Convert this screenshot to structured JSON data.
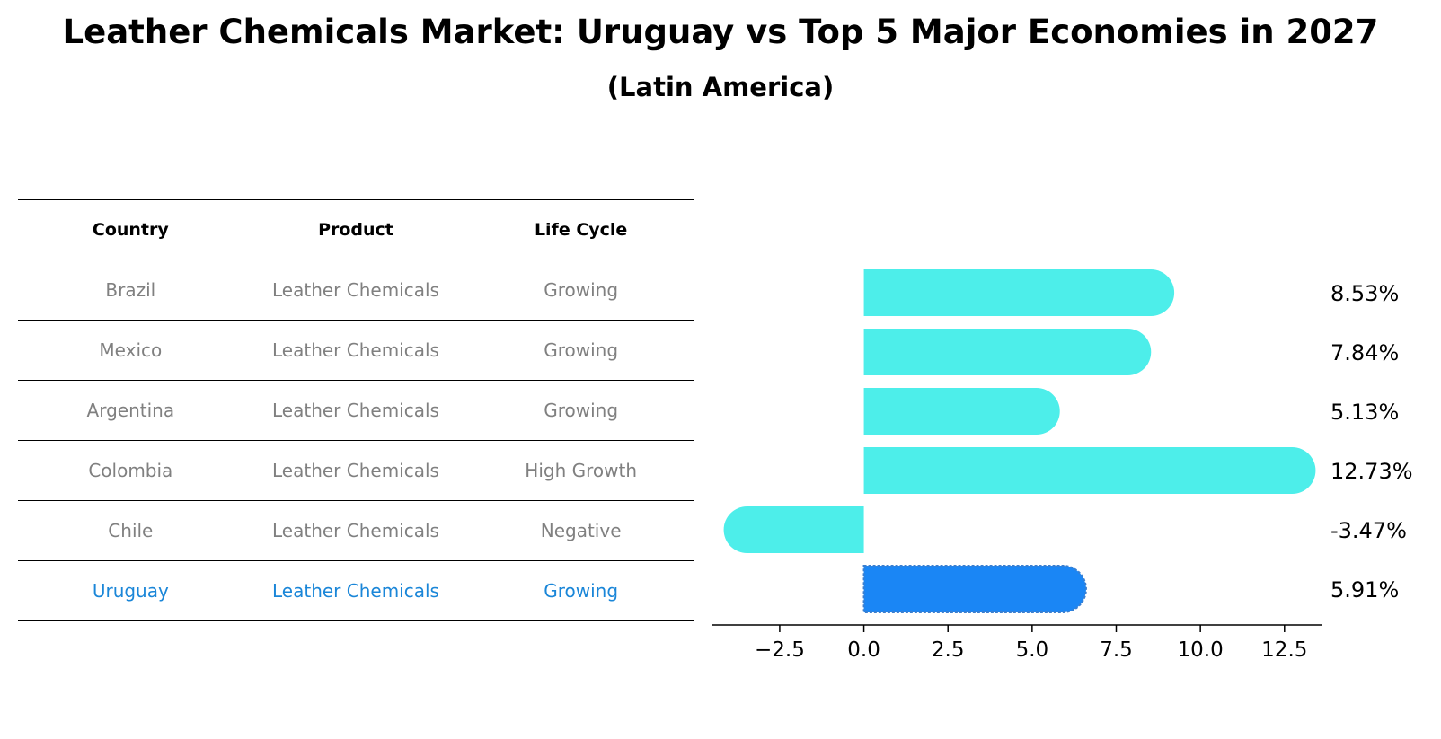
{
  "title": "Leather Chemicals Market: Uruguay vs Top 5 Major Economies in 2027",
  "subtitle": "(Latin America)",
  "table": {
    "headers": [
      "Country",
      "Product",
      "Life Cycle"
    ],
    "rows": [
      {
        "country": "Brazil",
        "product": "Leather Chemicals",
        "life_cycle": "Growing"
      },
      {
        "country": "Mexico",
        "product": "Leather Chemicals",
        "life_cycle": "Growing"
      },
      {
        "country": "Argentina",
        "product": "Leather Chemicals",
        "life_cycle": "Growing"
      },
      {
        "country": "Colombia",
        "product": "Leather Chemicals",
        "life_cycle": "High Growth"
      },
      {
        "country": "Chile",
        "product": "Leather Chemicals",
        "life_cycle": "Negative"
      },
      {
        "country": "Uruguay",
        "product": "Leather Chemicals",
        "life_cycle": "Growing"
      }
    ]
  },
  "chart_data": {
    "type": "bar",
    "orientation": "horizontal",
    "categories": [
      "Brazil",
      "Mexico",
      "Argentina",
      "Colombia",
      "Chile",
      "Uruguay"
    ],
    "values": [
      8.53,
      7.84,
      5.13,
      12.73,
      -3.47,
      5.91
    ],
    "value_labels": [
      "8.53%",
      "7.84%",
      "5.13%",
      "12.73%",
      "-3.47%",
      "5.91%"
    ],
    "highlight": "Uruguay",
    "xlim": [
      -4.5,
      13.6
    ],
    "xticks": [
      -2.5,
      0.0,
      2.5,
      5.0,
      7.5,
      10.0,
      12.5
    ],
    "xtick_labels": [
      "−2.5",
      "0.0",
      "2.5",
      "5.0",
      "7.5",
      "10.0",
      "12.5"
    ],
    "colors": {
      "default": "#4deeea",
      "highlight": "#1a86f5"
    }
  }
}
